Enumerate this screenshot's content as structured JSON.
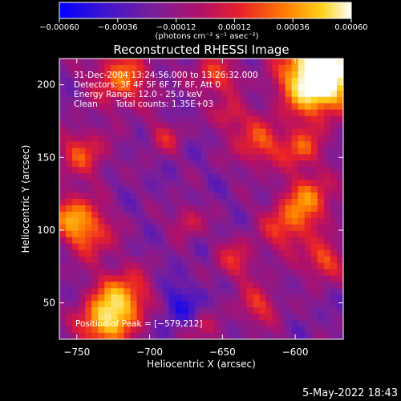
{
  "chart_data": {
    "type": "heatmap",
    "title": "Reconstructed RHESSI Image",
    "xlabel": "Heliocentric X (arcsec)",
    "ylabel": "Heliocentric Y (arcsec)",
    "xlim": [
      -762,
      -567
    ],
    "ylim": [
      25,
      218
    ],
    "x_ticks": [
      -750,
      -700,
      -650,
      -600
    ],
    "y_ticks": [
      50,
      100,
      150,
      200
    ],
    "x_tick_labels": [
      "−750",
      "−700",
      "−650",
      "−600"
    ],
    "y_tick_labels": [
      "50",
      "100",
      "150",
      "200"
    ],
    "colorbar": {
      "range": [
        -0.0006,
        0.0006
      ],
      "ticks": [
        -0.0006,
        -0.00036,
        -0.00012,
        0.00012,
        0.00036,
        0.0006
      ],
      "tick_labels": [
        "−0.00060",
        "−0.00036",
        "−0.00012",
        "0.00012",
        "0.00036",
        "0.00060"
      ],
      "units_label": "(photons cm⁻² s⁻¹ asec⁻²)",
      "colors": [
        "#0000ff",
        "#3c14d0",
        "#7a1f9a",
        "#b0106a",
        "#e8202a",
        "#ff7a00",
        "#ffd21a",
        "#ffffff"
      ]
    },
    "annotations": {
      "time_range": "31-Dec-2004 13:24:56.000 to 13:26:32.000",
      "detectors": "Detectors: 3F 4F 5F 6F 7F 8F, Att 0",
      "energy_range": "Energy Range: 12.0 - 25.0 keV",
      "clean_label": "Clean",
      "total_counts": "Total counts: 1.35E+03",
      "peak_position": "Position of Peak = [−579,212]"
    },
    "peak": {
      "x": -579,
      "y": 212
    }
  },
  "footer": {
    "timestamp": "5-May-2022 18:43"
  }
}
